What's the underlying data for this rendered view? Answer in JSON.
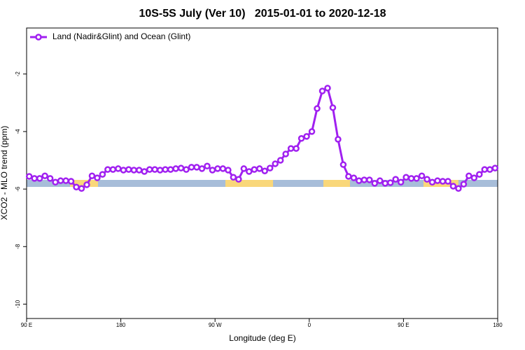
{
  "chart_data": {
    "type": "line",
    "title": "10S-5S July (Ver 10)   2015-01-01 to 2020-12-18",
    "xlabel": "Longitude (deg E)",
    "ylabel": "XCO2 - MLO trend (ppm)",
    "xlim": [
      90,
      540
    ],
    "ylim": [
      -10.5,
      -0.4
    ],
    "xticks": [
      {
        "value": 90,
        "label": "90 E"
      },
      180,
      {
        "value": 270,
        "label": "90 W"
      },
      {
        "value": 360,
        "label": "0"
      },
      {
        "value": 450,
        "label": "90 E"
      },
      {
        "value": 540,
        "label": "180"
      }
    ],
    "yticks": [
      -10,
      -8,
      -6,
      -4,
      -2
    ],
    "legend": "top-left",
    "land_regions": [
      [
        131.5,
        158.2
      ],
      [
        279.9,
        325.4
      ],
      [
        373.5,
        398.9
      ],
      [
        469.1,
        502.5
      ]
    ],
    "x": [
      92.5,
      97.5,
      102.5,
      107.5,
      112.5,
      117.5,
      122.5,
      127.5,
      132.5,
      137.5,
      142.5,
      147.5,
      152.5,
      157.5,
      162.5,
      167.5,
      172.5,
      177.5,
      182.5,
      187.5,
      192.5,
      197.5,
      202.5,
      207.5,
      212.5,
      217.5,
      222.5,
      227.5,
      232.5,
      237.5,
      242.5,
      247.5,
      252.5,
      257.5,
      262.5,
      267.5,
      272.5,
      277.5,
      282.5,
      287.5,
      292.5,
      297.5,
      302.5,
      307.5,
      312.5,
      317.5,
      322.5,
      327.5,
      332.5,
      337.5,
      342.5,
      347.5,
      352.5,
      357.5,
      362.5,
      367.5,
      372.5,
      377.5,
      382.5,
      387.5,
      392.5,
      397.5,
      402.5,
      407.5,
      412.5,
      417.5,
      422.5,
      427.5,
      432.5,
      437.5,
      442.5,
      447.5,
      452.5,
      457.5,
      462.5,
      467.5,
      472.5,
      477.5,
      482.5,
      487.5,
      492.5,
      497.5,
      502.5,
      507.5,
      512.5,
      517.5,
      522.5,
      527.5,
      532.5,
      537.5
    ],
    "series": [
      {
        "name": "Land (Nadir&Glint) and Ocean (Glint)",
        "color": "#a020f0",
        "values": [
          -5.56,
          -5.63,
          -5.63,
          -5.54,
          -5.63,
          -5.76,
          -5.71,
          -5.71,
          -5.73,
          -5.93,
          -5.98,
          -5.85,
          -5.54,
          -5.61,
          -5.49,
          -5.32,
          -5.32,
          -5.29,
          -5.34,
          -5.32,
          -5.34,
          -5.34,
          -5.39,
          -5.32,
          -5.32,
          -5.34,
          -5.32,
          -5.32,
          -5.29,
          -5.27,
          -5.32,
          -5.24,
          -5.24,
          -5.29,
          -5.2,
          -5.34,
          -5.29,
          -5.29,
          -5.34,
          -5.59,
          -5.66,
          -5.29,
          -5.39,
          -5.32,
          -5.29,
          -5.37,
          -5.27,
          -5.12,
          -5.0,
          -4.78,
          -4.59,
          -4.59,
          -4.24,
          -4.17,
          -4.0,
          -3.2,
          -2.59,
          -2.49,
          -3.17,
          -4.27,
          -5.15,
          -5.56,
          -5.61,
          -5.71,
          -5.68,
          -5.68,
          -5.8,
          -5.71,
          -5.8,
          -5.78,
          -5.66,
          -5.76,
          -5.59,
          -5.63,
          -5.63,
          -5.54,
          -5.66,
          -5.76,
          -5.71,
          -5.73,
          -5.73,
          -5.9,
          -5.98,
          -5.83,
          -5.54,
          -5.61,
          -5.49,
          -5.32,
          -5.32,
          -5.27
        ]
      }
    ]
  }
}
